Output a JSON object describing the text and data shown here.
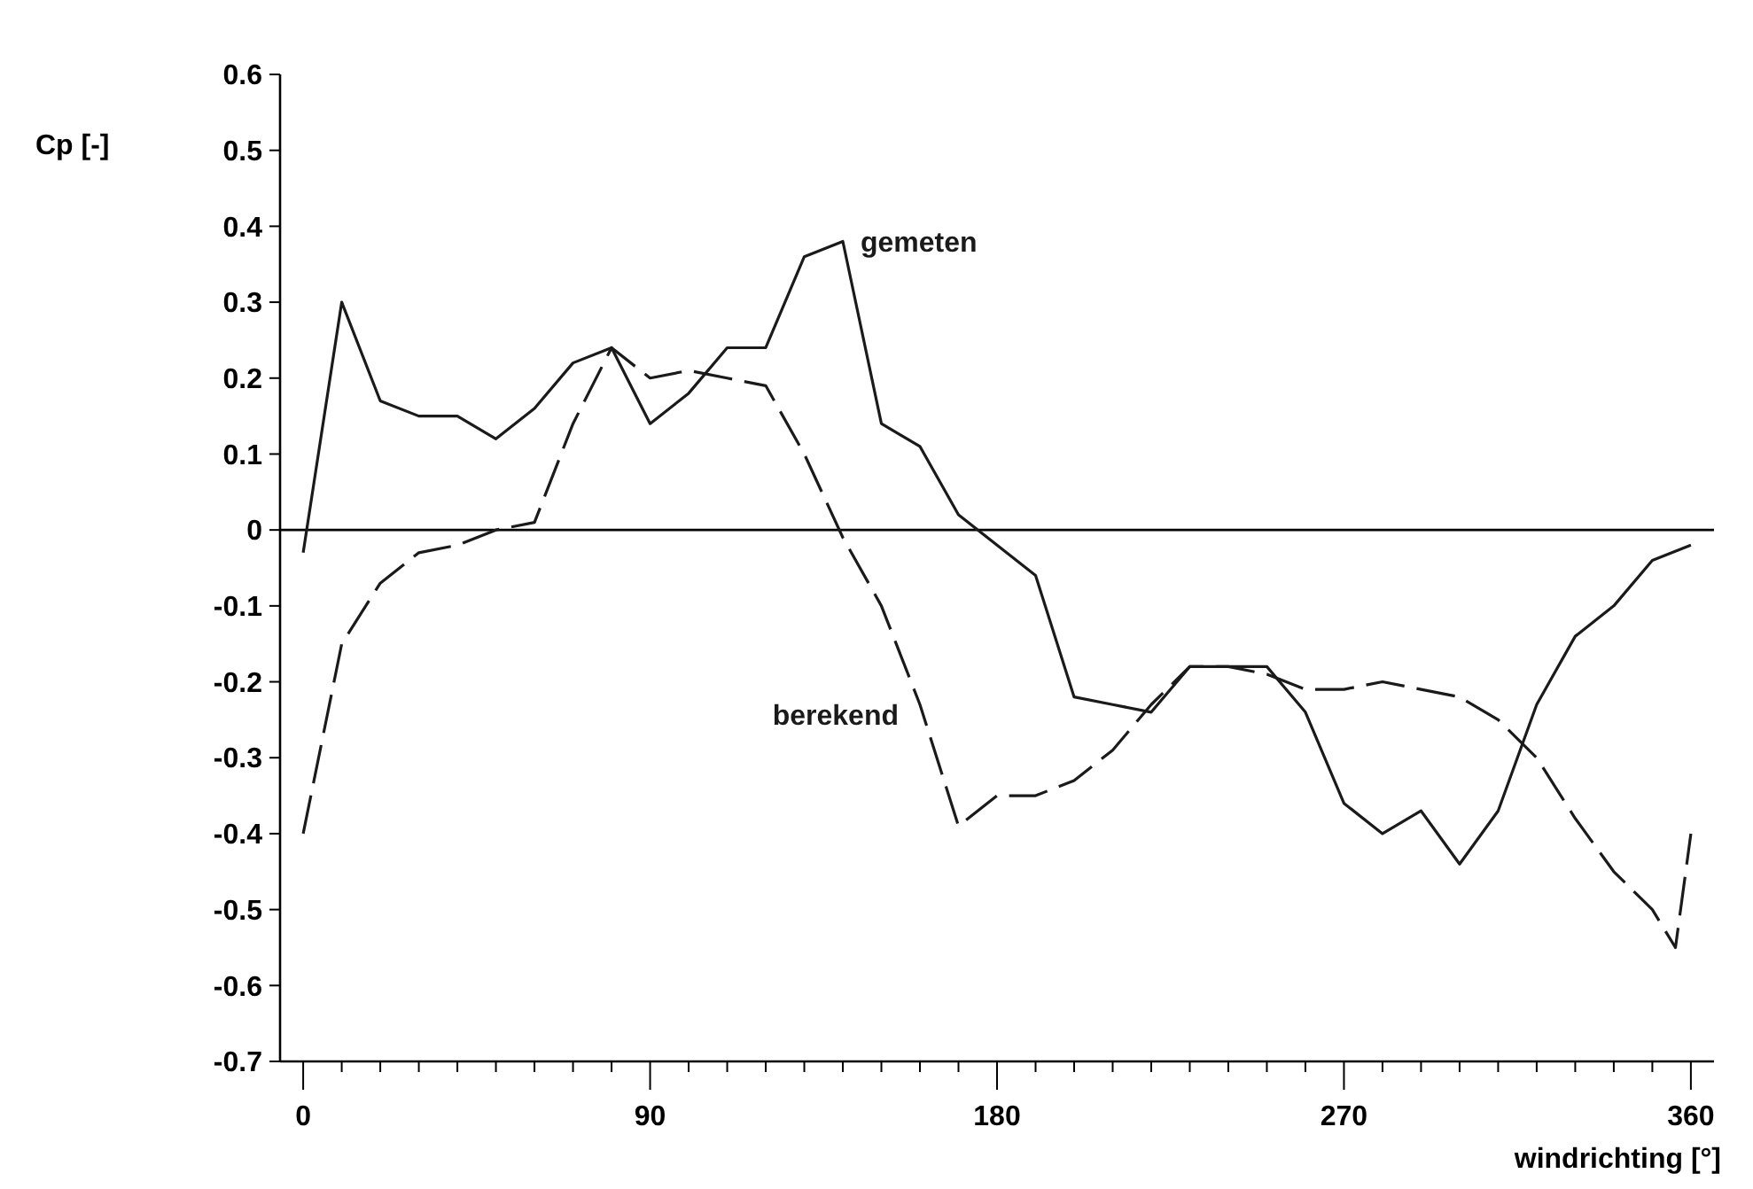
{
  "chart_data": {
    "type": "line",
    "ylabel": "Cp [-]",
    "xlabel": "windrichting [°]",
    "xlim": [
      -6,
      366
    ],
    "ylim": [
      -0.7,
      0.6
    ],
    "xticks": [
      0,
      {
        "value": 10,
        "label": null
      },
      {
        "value": 20,
        "label": null
      },
      {
        "value": 30,
        "label": null
      },
      {
        "value": 40,
        "label": null
      },
      {
        "value": 50,
        "label": null
      },
      {
        "value": 60,
        "label": null
      },
      {
        "value": 70,
        "label": null
      },
      {
        "value": 80,
        "label": null
      },
      90,
      {
        "value": 100,
        "label": null
      },
      {
        "value": 110,
        "label": null
      },
      {
        "value": 120,
        "label": null
      },
      {
        "value": 130,
        "label": null
      },
      {
        "value": 140,
        "label": null
      },
      {
        "value": 150,
        "label": null
      },
      {
        "value": 160,
        "label": null
      },
      {
        "value": 170,
        "label": null
      },
      180,
      {
        "value": 190,
        "label": null
      },
      {
        "value": 200,
        "label": null
      },
      {
        "value": 210,
        "label": null
      },
      {
        "value": 220,
        "label": null
      },
      {
        "value": 230,
        "label": null
      },
      {
        "value": 240,
        "label": null
      },
      {
        "value": 250,
        "label": null
      },
      {
        "value": 260,
        "label": null
      },
      270,
      {
        "value": 280,
        "label": null
      },
      {
        "value": 290,
        "label": null
      },
      {
        "value": 300,
        "label": null
      },
      {
        "value": 310,
        "label": null
      },
      {
        "value": 320,
        "label": null
      },
      {
        "value": 330,
        "label": null
      },
      {
        "value": 340,
        "label": null
      },
      {
        "value": 350,
        "label": null
      },
      360
    ],
    "yticks": [
      0.6,
      0.5,
      0.4,
      0.3,
      0.2,
      0.1,
      0,
      -0.1,
      -0.2,
      -0.3,
      -0.4,
      -0.5,
      -0.6,
      -0.7
    ],
    "x": [
      0,
      10,
      20,
      30,
      40,
      50,
      60,
      70,
      80,
      90,
      100,
      110,
      120,
      130,
      140,
      150,
      160,
      170,
      180,
      190,
      200,
      210,
      220,
      230,
      240,
      250,
      260,
      270,
      280,
      290,
      300,
      310,
      320,
      330,
      340,
      350,
      360
    ],
    "ref_lines": [
      {
        "axis": "y",
        "value": 0,
        "color": "#000000"
      }
    ],
    "series": [
      {
        "name": "gemeten",
        "color": "#1a1a1a",
        "line_style": "solid",
        "values": [
          -0.03,
          0.3,
          0.17,
          0.15,
          0.15,
          0.12,
          0.16,
          0.22,
          0.24,
          0.14,
          0.18,
          0.24,
          0.24,
          0.36,
          0.38,
          0.14,
          0.11,
          0.02,
          -0.02,
          -0.06,
          -0.22,
          -0.23,
          -0.24,
          -0.18,
          -0.18,
          -0.18,
          -0.24,
          -0.36,
          -0.4,
          -0.37,
          -0.44,
          -0.37,
          -0.23,
          -0.14,
          -0.1,
          -0.04,
          -0.02
        ]
      },
      {
        "name": "berekend",
        "color": "#1a1a1a",
        "line_style": "dashed",
        "x": [
          0,
          10,
          20,
          30,
          40,
          50,
          60,
          70,
          80,
          90,
          100,
          110,
          120,
          130,
          140,
          150,
          160,
          170,
          180,
          190,
          200,
          210,
          220,
          230,
          240,
          250,
          260,
          270,
          280,
          290,
          300,
          310,
          320,
          330,
          340,
          350,
          356,
          360
        ],
        "values": [
          -0.4,
          -0.15,
          -0.07,
          -0.03,
          -0.02,
          0.0,
          0.01,
          0.14,
          0.24,
          0.2,
          0.21,
          0.2,
          0.19,
          0.1,
          -0.01,
          -0.1,
          -0.23,
          -0.39,
          -0.35,
          -0.35,
          -0.33,
          -0.29,
          -0.23,
          -0.18,
          -0.18,
          -0.19,
          -0.21,
          -0.21,
          -0.2,
          -0.21,
          -0.22,
          -0.25,
          -0.3,
          -0.38,
          -0.45,
          -0.5,
          -0.55,
          -0.4
        ]
      }
    ]
  }
}
